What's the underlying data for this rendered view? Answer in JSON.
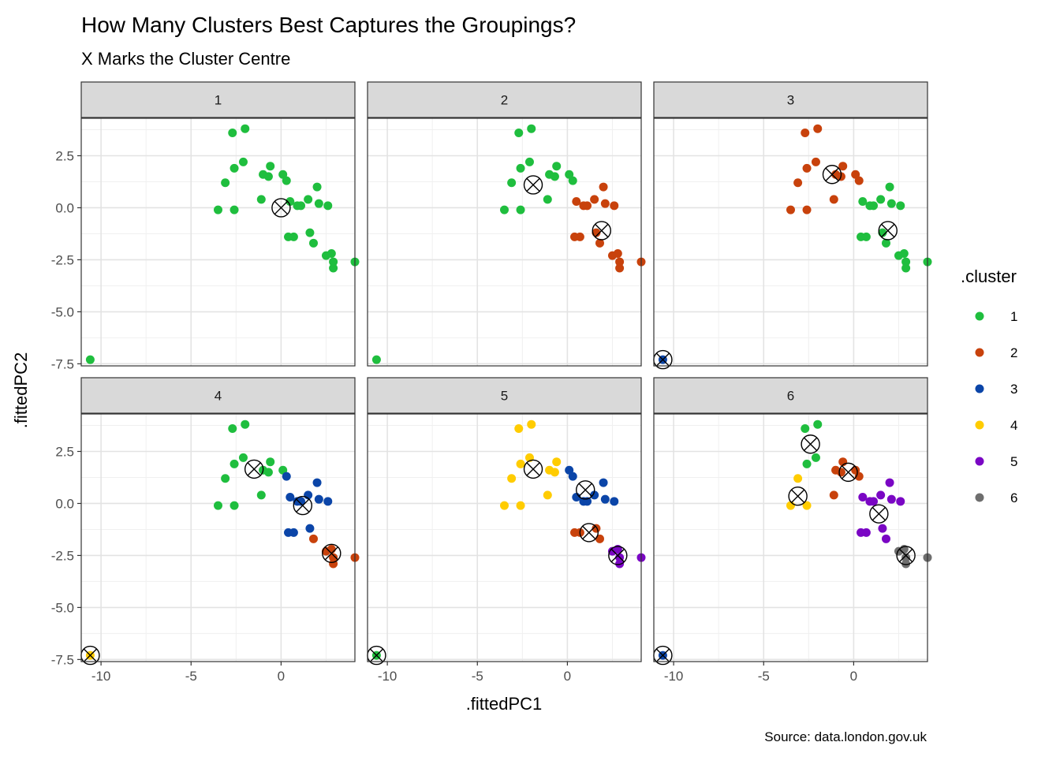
{
  "title": "How Many Clusters Best Captures the Groupings?",
  "subtitle": "X Marks the Cluster Centre",
  "caption": "Source: data.london.gov.uk",
  "chart_data": {
    "type": "scatter",
    "xlabel": ".fittedPC1",
    "ylabel": ".fittedPC2",
    "xlim": [
      -11.1,
      4.1
    ],
    "ylim": [
      -7.6,
      4.3
    ],
    "x_ticks": [
      -10,
      -5,
      0
    ],
    "x_tick_labels": [
      "-10",
      "-5",
      "0"
    ],
    "y_ticks": [
      2.5,
      0.0,
      -2.5,
      -5.0,
      -7.5
    ],
    "y_tick_labels": [
      "2.5",
      "0.0",
      "-2.5",
      "-5.0",
      "-7.5"
    ],
    "grid": true,
    "legend_title": ".cluster",
    "legend_position": "right",
    "legend": [
      {
        "label": "1",
        "color": "#1fbe3e"
      },
      {
        "label": "2",
        "color": "#c8420c"
      },
      {
        "label": "3",
        "color": "#0b45a8"
      },
      {
        "label": "4",
        "color": "#ffcc00"
      },
      {
        "label": "5",
        "color": "#7a06c4"
      },
      {
        "label": "6",
        "color": "#6e6e6e"
      }
    ],
    "points": [
      {
        "x": -10.6,
        "y": -7.3
      },
      {
        "x": -3.5,
        "y": -0.1
      },
      {
        "x": -2.6,
        "y": -0.1
      },
      {
        "x": -3.1,
        "y": 1.2
      },
      {
        "x": -2.6,
        "y": 1.9
      },
      {
        "x": -2.7,
        "y": 3.6
      },
      {
        "x": -2.0,
        "y": 3.8
      },
      {
        "x": -2.1,
        "y": 2.2
      },
      {
        "x": -1.1,
        "y": 0.4
      },
      {
        "x": -1.0,
        "y": 1.6
      },
      {
        "x": -0.6,
        "y": 2.0
      },
      {
        "x": -0.7,
        "y": 1.5
      },
      {
        "x": 0.1,
        "y": 1.6
      },
      {
        "x": 0.3,
        "y": 1.3
      },
      {
        "x": 0.5,
        "y": 0.3
      },
      {
        "x": 0.9,
        "y": 0.1
      },
      {
        "x": 1.1,
        "y": 0.1
      },
      {
        "x": 1.5,
        "y": 0.4
      },
      {
        "x": 2.0,
        "y": 1.0
      },
      {
        "x": 2.1,
        "y": 0.2
      },
      {
        "x": 2.6,
        "y": 0.1
      },
      {
        "x": 0.4,
        "y": -1.4
      },
      {
        "x": 0.7,
        "y": -1.4
      },
      {
        "x": 1.6,
        "y": -1.2
      },
      {
        "x": 1.8,
        "y": -1.7
      },
      {
        "x": 2.5,
        "y": -2.3
      },
      {
        "x": 2.8,
        "y": -2.2
      },
      {
        "x": 2.9,
        "y": -2.6
      },
      {
        "x": 2.9,
        "y": -2.9
      },
      {
        "x": 4.1,
        "y": -2.6
      }
    ],
    "panels": [
      {
        "label": "1",
        "assign": [
          1,
          1,
          1,
          1,
          1,
          1,
          1,
          1,
          1,
          1,
          1,
          1,
          1,
          1,
          1,
          1,
          1,
          1,
          1,
          1,
          1,
          1,
          1,
          1,
          1,
          1,
          1,
          1,
          1,
          1
        ],
        "centres": [
          {
            "x": 0.0,
            "y": 0.0
          }
        ]
      },
      {
        "label": "2",
        "assign": [
          1,
          1,
          1,
          1,
          1,
          1,
          1,
          1,
          1,
          1,
          1,
          1,
          1,
          1,
          2,
          2,
          2,
          2,
          2,
          2,
          2,
          2,
          2,
          2,
          2,
          2,
          2,
          2,
          2,
          2
        ],
        "centres": [
          {
            "x": -1.9,
            "y": 1.1
          },
          {
            "x": 1.9,
            "y": -1.1
          }
        ]
      },
      {
        "label": "3",
        "assign": [
          3,
          2,
          2,
          2,
          2,
          2,
          2,
          2,
          2,
          2,
          2,
          2,
          2,
          2,
          1,
          1,
          1,
          1,
          1,
          1,
          1,
          1,
          1,
          1,
          1,
          1,
          1,
          1,
          1,
          1
        ],
        "centres": [
          {
            "x": -1.2,
            "y": 1.6
          },
          {
            "x": 1.9,
            "y": -1.1
          },
          {
            "x": -10.6,
            "y": -7.3
          }
        ]
      },
      {
        "label": "4",
        "assign": [
          4,
          1,
          1,
          1,
          1,
          1,
          1,
          1,
          1,
          1,
          1,
          1,
          1,
          3,
          3,
          3,
          3,
          3,
          3,
          3,
          3,
          3,
          3,
          3,
          2,
          2,
          2,
          2,
          2,
          2
        ],
        "centres": [
          {
            "x": -1.5,
            "y": 1.65
          },
          {
            "x": 1.2,
            "y": -0.1
          },
          {
            "x": 2.8,
            "y": -2.4
          },
          {
            "x": -10.6,
            "y": -7.3
          }
        ]
      },
      {
        "label": "5",
        "assign": [
          1,
          4,
          4,
          4,
          4,
          4,
          4,
          4,
          4,
          4,
          4,
          4,
          3,
          3,
          3,
          3,
          3,
          3,
          3,
          3,
          3,
          2,
          2,
          2,
          2,
          5,
          5,
          5,
          5,
          5
        ],
        "centres": [
          {
            "x": -1.9,
            "y": 1.65
          },
          {
            "x": 1.0,
            "y": 0.65
          },
          {
            "x": 1.2,
            "y": -1.4
          },
          {
            "x": 2.8,
            "y": -2.5
          },
          {
            "x": -10.6,
            "y": -7.3
          }
        ]
      },
      {
        "label": "6",
        "assign": [
          3,
          4,
          4,
          4,
          1,
          1,
          1,
          1,
          2,
          2,
          2,
          2,
          2,
          2,
          5,
          5,
          5,
          5,
          5,
          5,
          5,
          5,
          5,
          5,
          5,
          6,
          6,
          6,
          6,
          6
        ],
        "centres": [
          {
            "x": -2.4,
            "y": 2.85
          },
          {
            "x": -0.3,
            "y": 1.5
          },
          {
            "x": -3.1,
            "y": 0.35
          },
          {
            "x": 1.4,
            "y": -0.5
          },
          {
            "x": 2.9,
            "y": -2.5
          },
          {
            "x": -10.6,
            "y": -7.3
          }
        ]
      }
    ]
  }
}
